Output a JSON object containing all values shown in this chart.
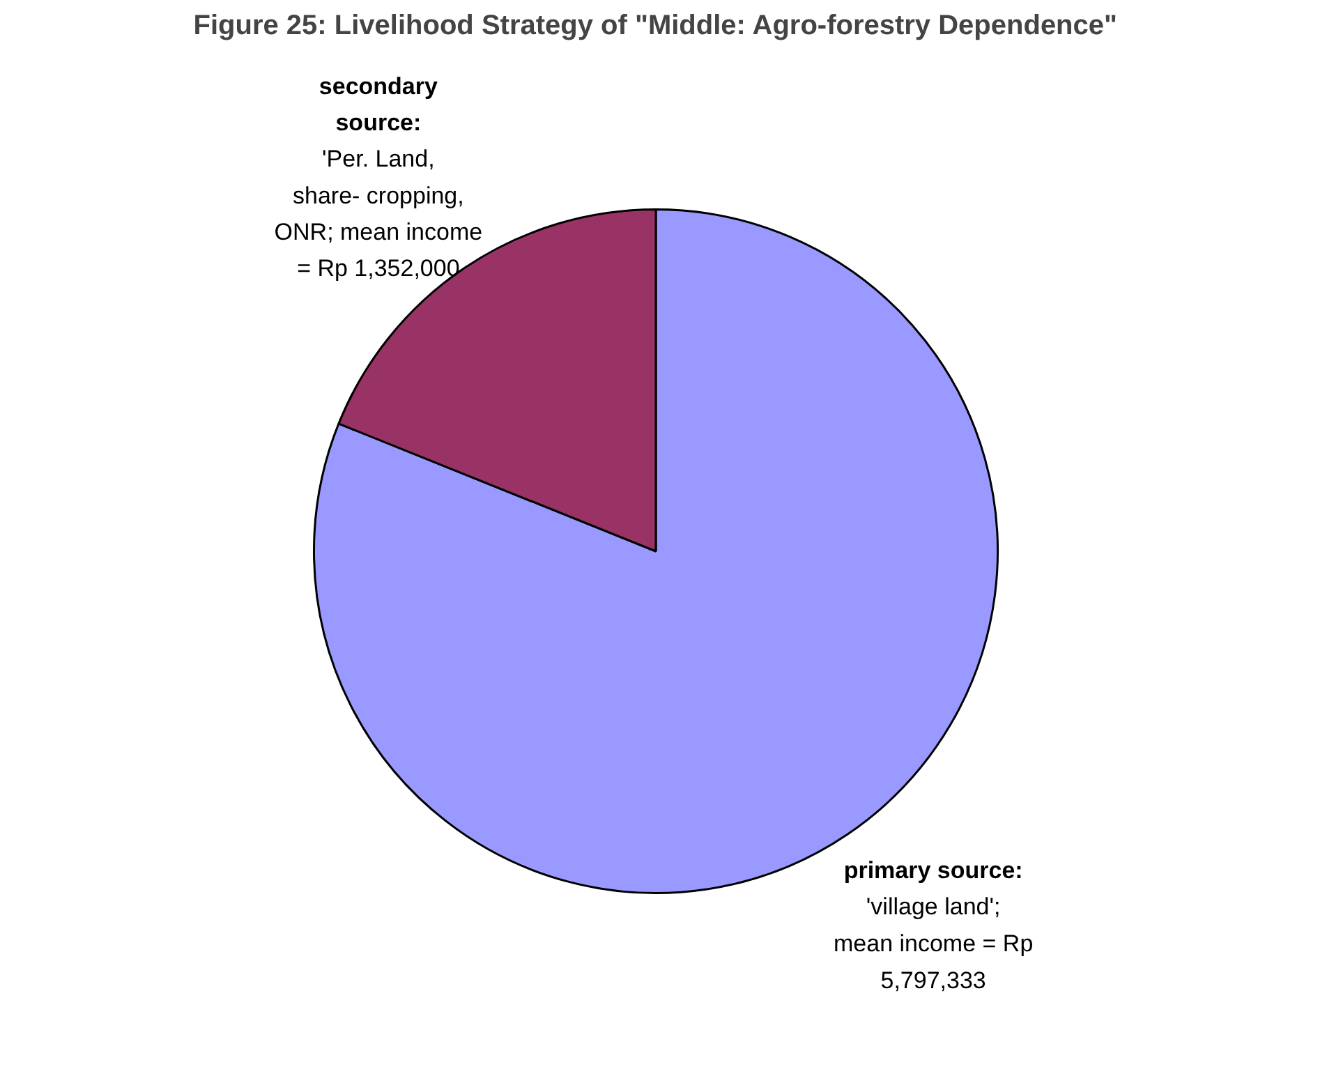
{
  "chart_data": {
    "type": "pie",
    "title": "Figure 25: Livelihood Strategy of \"Middle: Agro-forestry Dependence\"",
    "categories": [
      "primary source: 'village land'; mean income = Rp 5,797,333",
      "secondary source: 'Per. Land, share- cropping, ONR; mean income = Rp 1,352,000"
    ],
    "values": [
      5797333,
      1352000
    ],
    "colors": [
      "#9999ff",
      "#993366"
    ]
  }
}
